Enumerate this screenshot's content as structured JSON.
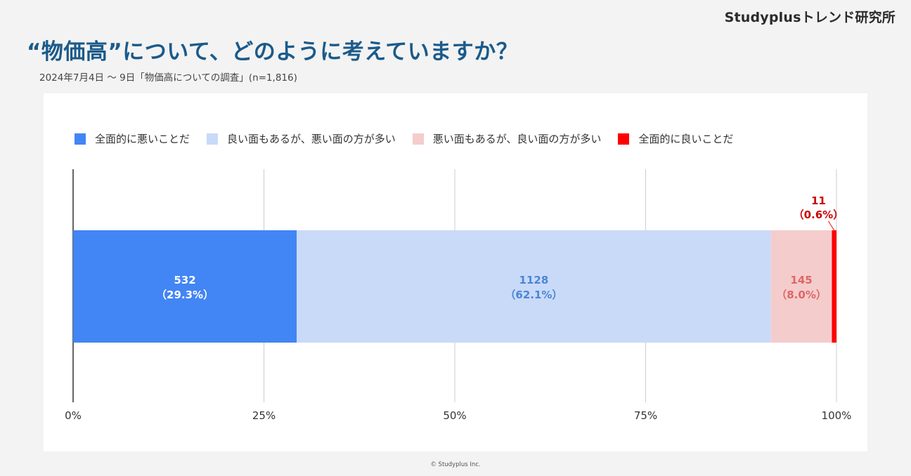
{
  "brand": "Studyplusトレンド研究所",
  "title": "“物価高”について、どのように考えていますか？",
  "subtitle": "2024年7月4日 〜 9日「物価高についての調査」(n=1,816)",
  "footer": "© Studyplus Inc.",
  "chart_data": {
    "type": "bar",
    "orientation": "horizontal",
    "stacked": "100%",
    "x_ticks": [
      "0%",
      "25%",
      "50%",
      "75%",
      "100%"
    ],
    "xlim": [
      0,
      100
    ],
    "grid": true,
    "legend_placement": "top-left",
    "series": [
      {
        "name": "全面的に悪いことだ",
        "value": 532,
        "percent": 29.3,
        "label_count": "532",
        "label_pct": "（29.3%）",
        "color": "#4285f4",
        "label_color": "#ffffff"
      },
      {
        "name": "良い面もあるが、悪い面の方が多い",
        "value": 1128,
        "percent": 62.1,
        "label_count": "1128",
        "label_pct": "（62.1%）",
        "color": "#c9daf8",
        "label_color": "#4a86d6"
      },
      {
        "name": "悪い面もあるが、良い面の方が多い",
        "value": 145,
        "percent": 8.0,
        "label_count": "145",
        "label_pct": "（8.0%）",
        "color": "#f4cccc",
        "label_color": "#e06666"
      },
      {
        "name": "全面的に良いことだ",
        "value": 11,
        "percent": 0.6,
        "label_count": "11",
        "label_pct": "（0.6%）",
        "color": "#ff0000",
        "label_color": "#cc0000"
      }
    ]
  }
}
